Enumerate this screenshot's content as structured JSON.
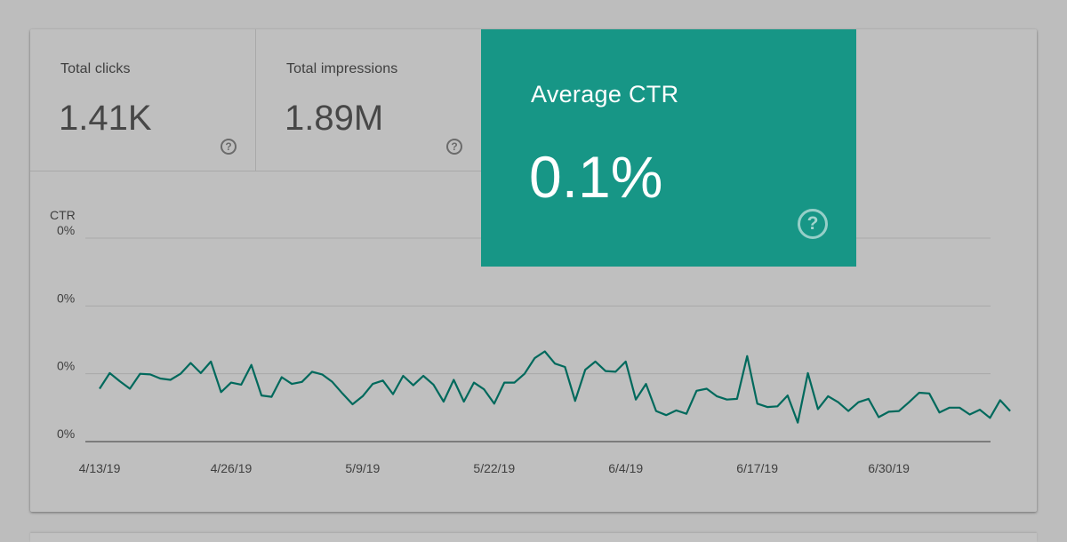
{
  "metrics": {
    "clicks": {
      "label": "Total clicks",
      "value": "1.41K"
    },
    "impressions": {
      "label": "Total impressions",
      "value": "1.89M"
    },
    "ctr": {
      "label": "Average CTR",
      "value": "0.1%"
    }
  },
  "icons": {
    "help": "help-circle-icon",
    "help_glyph": "?"
  },
  "colors": {
    "ctr_tile": "#179686",
    "ctr_line": "#00695c",
    "background": "#bdbdbd",
    "grid": "#a8a8a8"
  },
  "chart_data": {
    "type": "line",
    "ylabel": "CTR",
    "y_ticks": [
      "0%",
      "0%",
      "0%",
      "0%"
    ],
    "x_ticks": [
      "4/13/19",
      "4/26/19",
      "5/9/19",
      "5/22/19",
      "6/4/19",
      "6/17/19",
      "6/30/19"
    ],
    "x_start": "4/13/19",
    "x_end": "7/9/19",
    "ylim": [
      0,
      0.3
    ],
    "grid": true,
    "series": [
      {
        "values": [
          0.078,
          0.101,
          0.089,
          0.078,
          0.1,
          0.099,
          0.093,
          0.091,
          0.1,
          0.116,
          0.101,
          0.118,
          0.073,
          0.087,
          0.084,
          0.113,
          0.068,
          0.066,
          0.095,
          0.085,
          0.088,
          0.103,
          0.099,
          0.088,
          0.071,
          0.055,
          0.067,
          0.085,
          0.09,
          0.07,
          0.097,
          0.083,
          0.097,
          0.084,
          0.059,
          0.091,
          0.059,
          0.087,
          0.077,
          0.056,
          0.087,
          0.087,
          0.1,
          0.123,
          0.133,
          0.115,
          0.11,
          0.06,
          0.106,
          0.118,
          0.104,
          0.103,
          0.118,
          0.062,
          0.085,
          0.045,
          0.039,
          0.046,
          0.041,
          0.075,
          0.078,
          0.067,
          0.062,
          0.063,
          0.126,
          0.056,
          0.051,
          0.052,
          0.068,
          0.028,
          0.101,
          0.048,
          0.067,
          0.058,
          0.045,
          0.058,
          0.063,
          0.036,
          0.044,
          0.045,
          0.058,
          0.072,
          0.071,
          0.043,
          0.05,
          0.05,
          0.04,
          0.047,
          0.035,
          0.061,
          0.045
        ]
      }
    ]
  }
}
